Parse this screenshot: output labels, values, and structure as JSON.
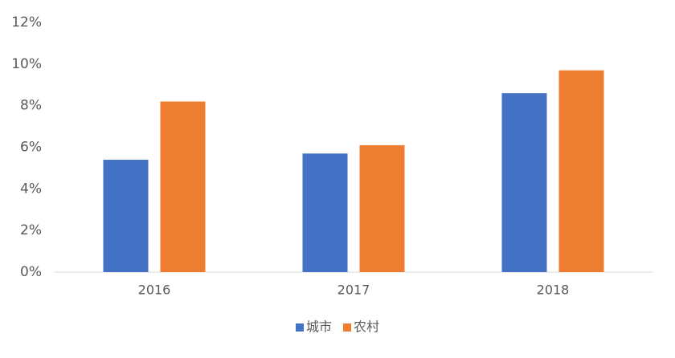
{
  "chart_data": {
    "type": "bar",
    "categories": [
      "2016",
      "2017",
      "2018"
    ],
    "series": [
      {
        "name": "城市",
        "color": "#4472c4",
        "values": [
          5.4,
          5.7,
          8.6
        ]
      },
      {
        "name": "农村",
        "color": "#ed7d31",
        "values": [
          8.2,
          6.1,
          9.7
        ]
      }
    ],
    "ylim": [
      0,
      12
    ],
    "yticks": [
      {
        "value": 0,
        "label": "0%"
      },
      {
        "value": 2,
        "label": "2%"
      },
      {
        "value": 4,
        "label": "4%"
      },
      {
        "value": 6,
        "label": "6%"
      },
      {
        "value": 8,
        "label": "8%"
      },
      {
        "value": 10,
        "label": "10%"
      },
      {
        "value": 12,
        "label": "12%"
      }
    ],
    "grid": false,
    "legend": "bottom"
  }
}
